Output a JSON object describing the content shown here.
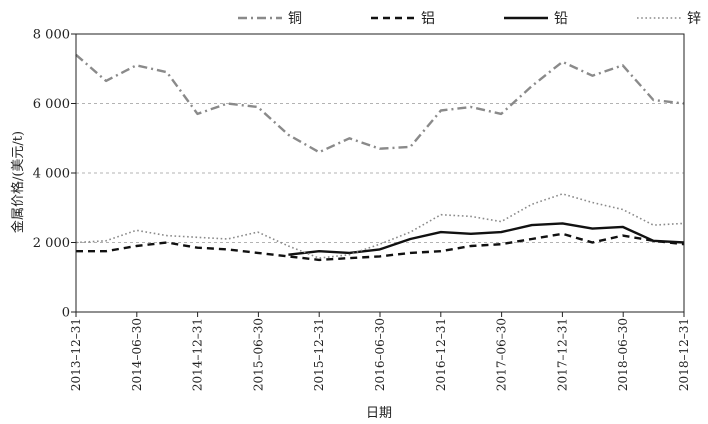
{
  "chart_data": {
    "type": "line",
    "xlabel": "日期",
    "ylabel": "金属价格/(美元/t)",
    "ylim": [
      0,
      8000
    ],
    "yticks": [
      0,
      2000,
      4000,
      6000,
      8000
    ],
    "ytick_labels": [
      "0",
      "2 000",
      "4 000",
      "6 000",
      "8 000"
    ],
    "xlim": [
      "2013-12-31",
      "2018-12-31"
    ],
    "xtick_labels": [
      "2013–12–31",
      "2014–06–30",
      "2014–12–31",
      "2015–06–30",
      "2015–12–31",
      "2016–06–30",
      "2016–12–31",
      "2017–06–30",
      "2017–12–31",
      "2018–06–30",
      "2018–12–31"
    ],
    "grid": "horizontal dashed",
    "legend_position": "top",
    "x": [
      "2013-12-31",
      "2014-03-31",
      "2014-06-30",
      "2014-09-30",
      "2014-12-31",
      "2015-03-31",
      "2015-06-30",
      "2015-09-30",
      "2015-12-31",
      "2016-03-31",
      "2016-06-30",
      "2016-09-30",
      "2016-12-31",
      "2017-03-31",
      "2017-06-30",
      "2017-09-30",
      "2017-12-31",
      "2018-03-31",
      "2018-06-30",
      "2018-09-30",
      "2018-12-31"
    ],
    "series": [
      {
        "name": "铜",
        "color": "#8a8a8a",
        "style": "dashdot",
        "values": [
          7400,
          6650,
          7100,
          6900,
          5700,
          6000,
          5900,
          5100,
          4600,
          5000,
          4700,
          4750,
          5800,
          5900,
          5700,
          6500,
          7200,
          6800,
          7100,
          6100,
          6000
        ]
      },
      {
        "name": "铝",
        "color": "#111111",
        "style": "dashed",
        "values": [
          1750,
          1750,
          1900,
          2000,
          1850,
          1800,
          1700,
          1600,
          1500,
          1550,
          1600,
          1700,
          1750,
          1900,
          1950,
          2100,
          2250,
          2000,
          2200,
          2050,
          1950
        ]
      },
      {
        "name": "铅",
        "color": "#111111",
        "style": "solid",
        "values": [
          null,
          null,
          null,
          null,
          null,
          null,
          null,
          1650,
          1750,
          1700,
          1800,
          2100,
          2300,
          2250,
          2300,
          2500,
          2550,
          2400,
          2450,
          2050,
          2000
        ]
      },
      {
        "name": "锌",
        "color": "#8a8a8a",
        "style": "dotted",
        "values": [
          2000,
          2050,
          2350,
          2200,
          2150,
          2100,
          2300,
          1900,
          1550,
          1650,
          1950,
          2300,
          2800,
          2750,
          2600,
          3100,
          3400,
          3150,
          2950,
          2500,
          2550
        ]
      }
    ]
  }
}
